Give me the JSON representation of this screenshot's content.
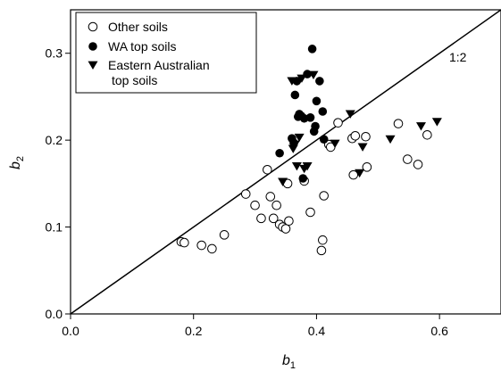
{
  "chart_data": {
    "type": "scatter",
    "title": "",
    "xlabel": "b",
    "xlabel_sub": "1",
    "ylabel": "b",
    "ylabel_sub": "2",
    "xlim": [
      0.0,
      0.7
    ],
    "ylim": [
      0.0,
      0.35
    ],
    "x_ticks": [
      0.0,
      0.2,
      0.4,
      0.6
    ],
    "x_tick_labels": [
      "0.0",
      "0.2",
      "0.4",
      "0.6"
    ],
    "y_ticks": [
      0.0,
      0.1,
      0.2,
      0.3
    ],
    "y_tick_labels": [
      "0.0",
      "0.1",
      "0.2",
      "0.3"
    ],
    "grid": false,
    "legend_position": "top-left",
    "reference_line": {
      "label": "1:2",
      "slope": 0.5,
      "intercept": 0.0
    },
    "series": [
      {
        "name": "Other soils",
        "marker": "open-circle",
        "color": "#000000",
        "points": [
          [
            0.18,
            0.083
          ],
          [
            0.185,
            0.082
          ],
          [
            0.213,
            0.079
          ],
          [
            0.23,
            0.075
          ],
          [
            0.25,
            0.091
          ],
          [
            0.285,
            0.138
          ],
          [
            0.3,
            0.125
          ],
          [
            0.31,
            0.11
          ],
          [
            0.32,
            0.166
          ],
          [
            0.325,
            0.135
          ],
          [
            0.33,
            0.11
          ],
          [
            0.335,
            0.125
          ],
          [
            0.34,
            0.103
          ],
          [
            0.345,
            0.1
          ],
          [
            0.35,
            0.098
          ],
          [
            0.353,
            0.15
          ],
          [
            0.355,
            0.107
          ],
          [
            0.38,
            0.153
          ],
          [
            0.39,
            0.117
          ],
          [
            0.408,
            0.073
          ],
          [
            0.41,
            0.085
          ],
          [
            0.412,
            0.136
          ],
          [
            0.42,
            0.195
          ],
          [
            0.423,
            0.192
          ],
          [
            0.435,
            0.22
          ],
          [
            0.458,
            0.202
          ],
          [
            0.46,
            0.16
          ],
          [
            0.463,
            0.205
          ],
          [
            0.48,
            0.204
          ],
          [
            0.482,
            0.169
          ],
          [
            0.533,
            0.219
          ],
          [
            0.548,
            0.178
          ],
          [
            0.565,
            0.172
          ],
          [
            0.58,
            0.206
          ]
        ]
      },
      {
        "name": "WA top soils",
        "marker": "filled-circle",
        "color": "#000000",
        "points": [
          [
            0.34,
            0.185
          ],
          [
            0.36,
            0.202
          ],
          [
            0.363,
            0.197
          ],
          [
            0.365,
            0.252
          ],
          [
            0.368,
            0.268
          ],
          [
            0.37,
            0.227
          ],
          [
            0.372,
            0.23
          ],
          [
            0.375,
            0.228
          ],
          [
            0.378,
            0.156
          ],
          [
            0.38,
            0.225
          ],
          [
            0.385,
            0.276
          ],
          [
            0.39,
            0.226
          ],
          [
            0.393,
            0.305
          ],
          [
            0.396,
            0.21
          ],
          [
            0.398,
            0.216
          ],
          [
            0.4,
            0.245
          ],
          [
            0.405,
            0.268
          ],
          [
            0.41,
            0.233
          ],
          [
            0.412,
            0.201
          ]
        ]
      },
      {
        "name": "Eastern Australian\ntop soils",
        "marker": "filled-triangle-down",
        "color": "#000000",
        "points": [
          [
            0.345,
            0.152
          ],
          [
            0.36,
            0.268
          ],
          [
            0.362,
            0.19
          ],
          [
            0.365,
            0.195
          ],
          [
            0.368,
            0.17
          ],
          [
            0.372,
            0.203
          ],
          [
            0.376,
            0.271
          ],
          [
            0.38,
            0.167
          ],
          [
            0.385,
            0.17
          ],
          [
            0.395,
            0.275
          ],
          [
            0.43,
            0.196
          ],
          [
            0.455,
            0.23
          ],
          [
            0.47,
            0.162
          ],
          [
            0.475,
            0.192
          ],
          [
            0.52,
            0.201
          ],
          [
            0.57,
            0.216
          ],
          [
            0.596,
            0.221
          ]
        ]
      }
    ]
  },
  "legend": {
    "entries": [
      {
        "marker": "open-circle",
        "line1": "Other soils",
        "line2": ""
      },
      {
        "marker": "filled-circle",
        "line1": "WA top soils",
        "line2": ""
      },
      {
        "marker": "filled-triangle-down",
        "line1": "Eastern Australian",
        "line2": "top soils"
      }
    ]
  }
}
